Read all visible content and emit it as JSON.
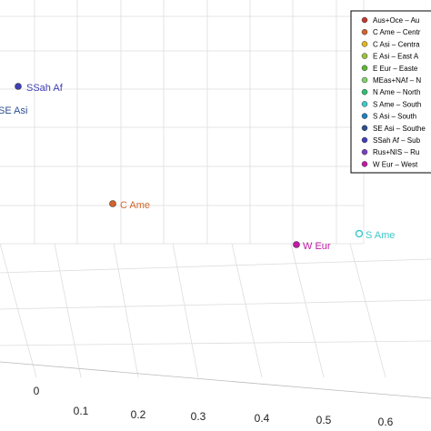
{
  "chart_data": {
    "type": "scatter",
    "projection": "3d",
    "grid": true,
    "legend_placement": "top-right",
    "x_ticks": [
      "0",
      "0.1",
      "0.2",
      "0.3",
      "0.4",
      "0.5",
      "0.6"
    ],
    "points": [
      {
        "label": "SSah Af",
        "color": "#3f3fb6",
        "filled": true
      },
      {
        "label": "SE Asi",
        "color": "#2b4f8f",
        "filled": true
      },
      {
        "label": "C Ame",
        "color": "#d2642a",
        "filled": true
      },
      {
        "label": "W Eur",
        "color": "#c21aa6",
        "filled": true
      },
      {
        "label": "S Ame",
        "color": "#3ec9c9",
        "filled": false
      }
    ],
    "legend": [
      {
        "text": "Aus+Oce – Au",
        "color": "#c0392b"
      },
      {
        "text": "C Ame – Centr",
        "color": "#d2642a"
      },
      {
        "text": "C Asi – Centra",
        "color": "#e0b520"
      },
      {
        "text": "E Asi – East A",
        "color": "#9ac23b"
      },
      {
        "text": "E Eur – Easte",
        "color": "#5cb82f"
      },
      {
        "text": "MEas+NAf – N",
        "color": "#7cd36a"
      },
      {
        "text": "N Ame – North",
        "color": "#2fbf6f"
      },
      {
        "text": "S Ame – South",
        "color": "#3ec9c9"
      },
      {
        "text": "S Asi – South",
        "color": "#1f7fbf"
      },
      {
        "text": "SE Asi – Southe",
        "color": "#2b4f8f"
      },
      {
        "text": "SSah Af – Sub",
        "color": "#3f3fb6"
      },
      {
        "text": "Rus+NIS – Ru",
        "color": "#7a3ec2"
      },
      {
        "text": "W Eur – West",
        "color": "#c21aa6"
      }
    ]
  }
}
